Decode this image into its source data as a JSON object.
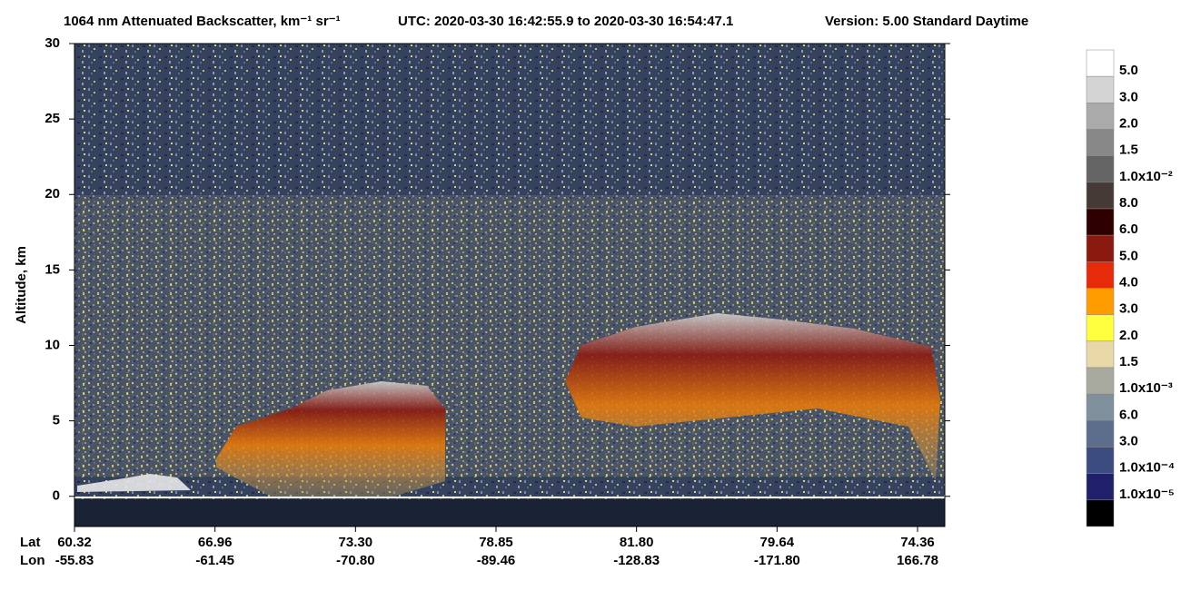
{
  "chart_data": {
    "type": "curtain",
    "title": "1064 nm Attenuated Backscatter, km⁻¹ sr⁻¹",
    "time_range": "UTC:  2020-03-30 16:42:55.9  to  2020-03-30 16:54:47.1",
    "version": "Version: 5.00  Standard  Daytime",
    "y_label": "Altitude, km",
    "ylim": [
      -2,
      30
    ],
    "yticks": [
      0,
      5,
      10,
      15,
      20,
      25,
      30
    ],
    "lat_label": "Lat",
    "lon_label": "Lon",
    "lat": [
      "60.32",
      "66.96",
      "73.30",
      "78.85",
      "81.80",
      "79.64",
      "74.36"
    ],
    "lon": [
      "-55.83",
      "-61.45",
      "-70.80",
      "-89.46",
      "-128.83",
      "-171.80",
      "166.78"
    ],
    "colorbar": {
      "colors": [
        "#ffffff",
        "#d4d4d4",
        "#aaaaaa",
        "#888888",
        "#646464",
        "#463a36",
        "#2e0000",
        "#8a1a10",
        "#e62a0a",
        "#ff9c00",
        "#ffff40",
        "#e8d8a8",
        "#a8aaa0",
        "#7f8f9c",
        "#5c6e8c",
        "#3c4c80",
        "#20206a",
        "#000000"
      ],
      "labels": [
        "5.0",
        "3.0",
        "2.0",
        "1.5",
        "1.0x10⁻²",
        "8.0",
        "6.0",
        "5.0",
        "4.0",
        "3.0",
        "2.0",
        "1.5",
        "1.0x10⁻³",
        "6.0",
        "3.0",
        "1.0x10⁻⁴",
        "1.0x10⁻⁵"
      ]
    }
  }
}
